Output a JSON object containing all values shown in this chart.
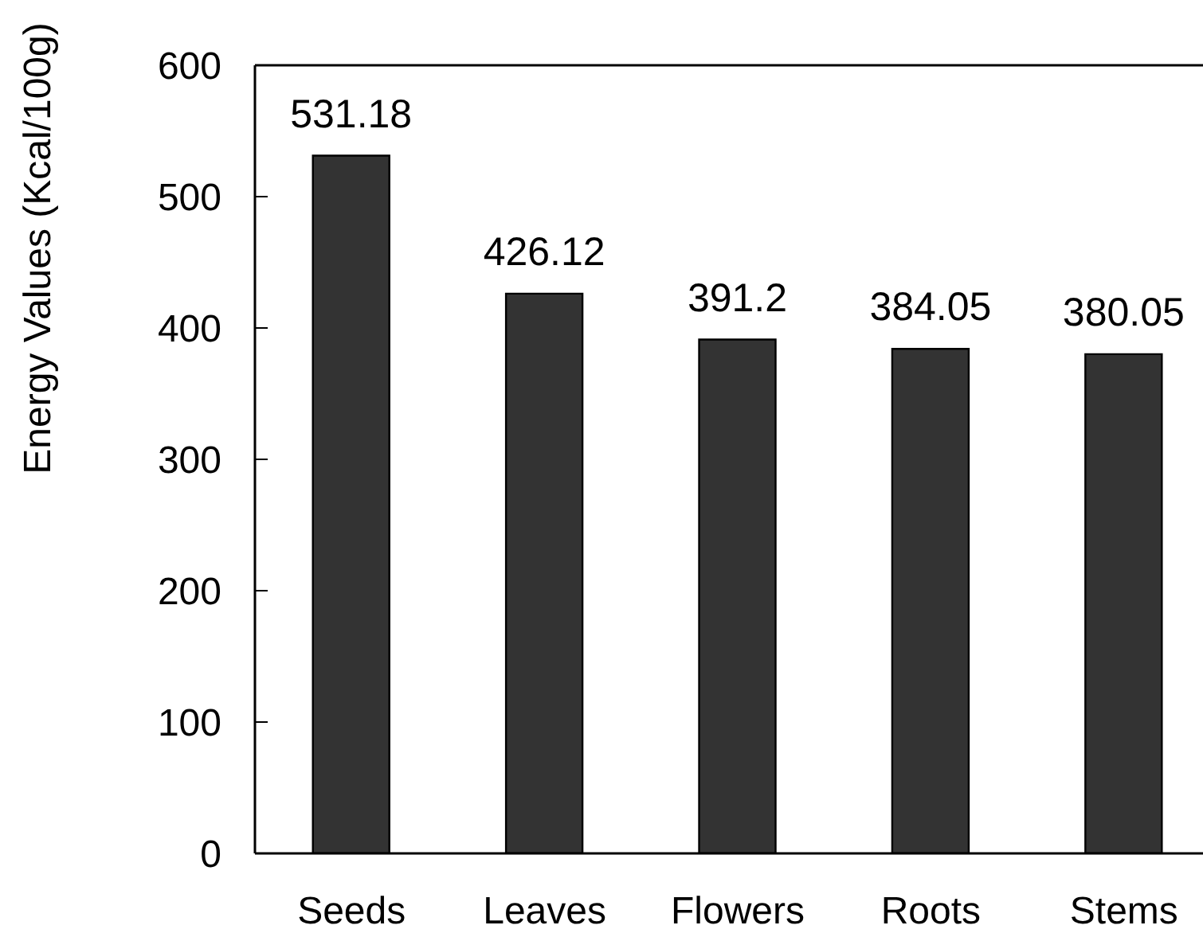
{
  "chart_data": {
    "type": "bar",
    "ylabel": "Energy Values (Kcal/100g)",
    "categories": [
      "Seeds",
      "Leaves",
      "Flowers",
      "Roots",
      "Stems"
    ],
    "values": [
      531.18,
      426.12,
      391.2,
      384.05,
      380.05
    ],
    "color": "#333333",
    "ylim": [
      0,
      600
    ],
    "yticks": [
      0,
      100,
      200,
      300,
      400,
      500,
      600
    ],
    "data_labels": true
  }
}
